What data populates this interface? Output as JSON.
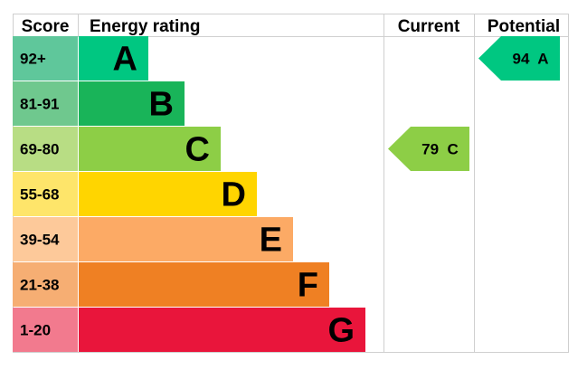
{
  "chart_data": {
    "type": "bar",
    "headers": {
      "score": "Score",
      "energy_rating": "Energy rating",
      "current": "Current",
      "potential": "Potential"
    },
    "bands": [
      {
        "letter": "A",
        "range": "92+",
        "bar_color": "#00c781",
        "score_color": "#5fc79b"
      },
      {
        "letter": "B",
        "range": "81-91",
        "bar_color": "#19b459",
        "score_color": "#6fc88e"
      },
      {
        "letter": "C",
        "range": "69-80",
        "bar_color": "#8dce46",
        "score_color": "#b8dd84"
      },
      {
        "letter": "D",
        "range": "55-68",
        "bar_color": "#ffd500",
        "score_color": "#fee56a"
      },
      {
        "letter": "E",
        "range": "39-54",
        "bar_color": "#fcaa65",
        "score_color": "#fdc99a"
      },
      {
        "letter": "F",
        "range": "21-38",
        "bar_color": "#ef8023",
        "score_color": "#f6ae73"
      },
      {
        "letter": "G",
        "range": "1-20",
        "bar_color": "#e9153b",
        "score_color": "#f27a8e"
      }
    ],
    "current": {
      "value": 79,
      "band": "C",
      "label": "79  C",
      "color": "#8dce46"
    },
    "potential": {
      "value": 94,
      "band": "A",
      "label": "94  A",
      "color": "#00c781"
    }
  }
}
